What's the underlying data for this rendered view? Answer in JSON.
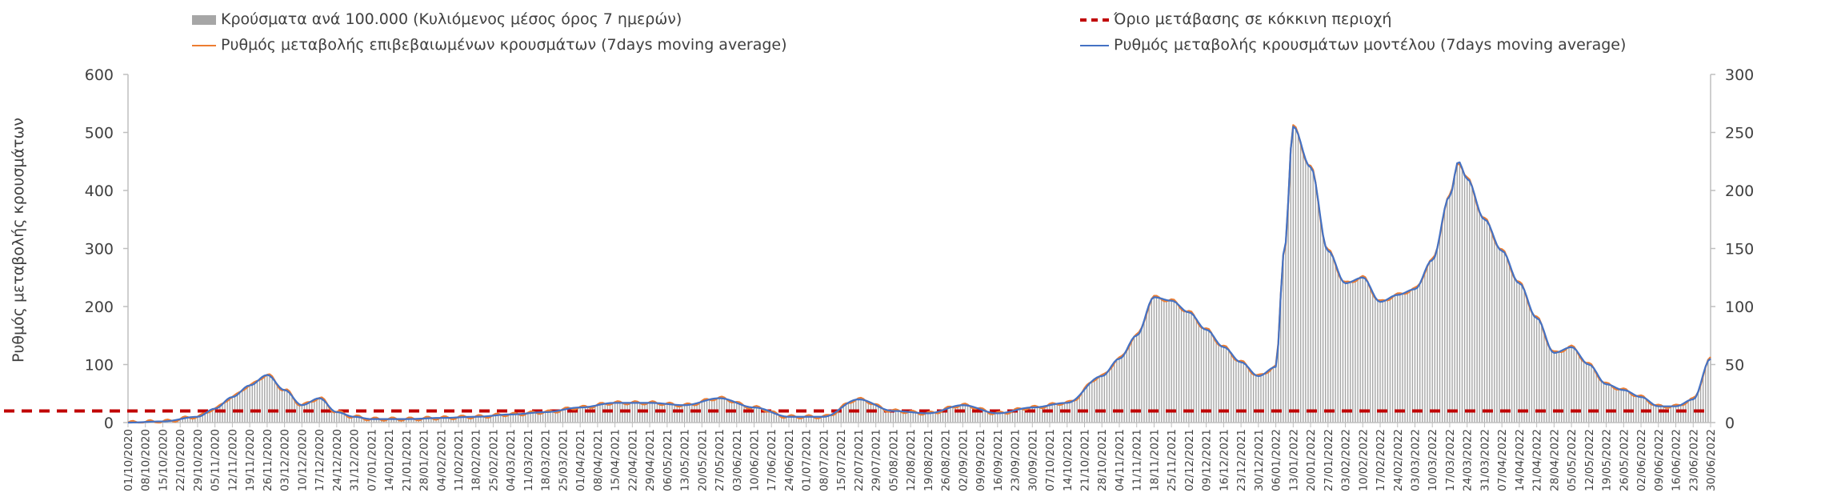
{
  "chart_data": {
    "type": "bar",
    "ylabel_left": "Ρυθμός μεταβολής κρουσμάτων",
    "left_axis": {
      "ylim": [
        0,
        600
      ],
      "ticks": [
        0,
        100,
        200,
        300,
        400,
        500,
        600
      ]
    },
    "right_axis": {
      "ylim": [
        0,
        300
      ],
      "ticks": [
        0,
        50,
        100,
        150,
        200,
        250,
        300
      ]
    },
    "grid": false,
    "legend_position": "top",
    "x_tick_labels": [
      "01/10/2020",
      "08/10/2020",
      "15/10/2020",
      "22/10/2020",
      "29/10/2020",
      "05/11/2020",
      "12/11/2020",
      "19/11/2020",
      "26/11/2020",
      "03/12/2020",
      "10/12/2020",
      "17/12/2020",
      "24/12/2020",
      "31/12/2020",
      "07/01/2021",
      "14/01/2021",
      "21/01/2021",
      "28/01/2021",
      "04/02/2021",
      "11/02/2021",
      "18/02/2021",
      "25/02/2021",
      "04/03/2021",
      "11/03/2021",
      "18/03/2021",
      "25/03/2021",
      "01/04/2021",
      "08/04/2021",
      "15/04/2021",
      "22/04/2021",
      "29/04/2021",
      "06/05/2021",
      "13/05/2021",
      "20/05/2021",
      "27/05/2021",
      "03/06/2021",
      "10/06/2021",
      "17/06/2021",
      "24/06/2021",
      "01/07/2021",
      "08/07/2021",
      "15/07/2021",
      "22/07/2021",
      "29/07/2021",
      "05/08/2021",
      "12/08/2021",
      "19/08/2021",
      "26/08/2021",
      "02/09/2021",
      "09/09/2021",
      "16/09/2021",
      "23/09/2021",
      "30/09/2021",
      "07/10/2021",
      "14/10/2021",
      "21/10/2021",
      "28/10/2021",
      "04/11/2021",
      "11/11/2021",
      "18/11/2021",
      "25/11/2021",
      "02/12/2021",
      "09/12/2021",
      "16/12/2021",
      "23/12/2021",
      "30/12/2021",
      "06/01/2022",
      "13/01/2022",
      "20/01/2022",
      "27/01/2022",
      "03/02/2022",
      "10/02/2022",
      "17/02/2022",
      "24/02/2022",
      "03/03/2022",
      "10/03/2022",
      "17/03/2022",
      "24/03/2022",
      "31/03/2022",
      "07/04/2022",
      "14/04/2022",
      "21/04/2022",
      "28/04/2022",
      "05/05/2022",
      "12/05/2022",
      "19/05/2022",
      "26/05/2022",
      "02/06/2022",
      "09/06/2022",
      "16/06/2022",
      "23/06/2022",
      "30/06/2022"
    ],
    "keypoints_week_index": [
      0,
      2,
      4,
      5,
      6,
      7,
      8,
      9,
      10,
      11,
      12,
      13,
      14,
      16,
      18,
      20,
      22,
      24,
      26,
      28,
      30,
      32,
      34,
      36,
      38,
      40,
      42,
      44,
      46,
      48,
      50,
      52,
      54,
      56,
      57,
      58,
      59,
      60,
      61,
      62,
      63,
      64,
      65,
      66,
      66.5,
      67,
      68,
      69,
      70,
      71,
      72,
      73,
      74,
      75,
      76,
      76.5,
      77,
      78,
      79,
      80,
      81,
      82,
      83,
      84,
      85,
      86,
      87,
      88,
      89,
      90,
      91
    ],
    "series": [
      {
        "name": "Κρούσματα ανά 100.000 (Κυλιόμενος μέσος όρος 7 ημερών)",
        "axis": "right",
        "style": "bar",
        "values": [
          0,
          1,
          5,
          12,
          22,
          32,
          40,
          28,
          15,
          21,
          9,
          5,
          3,
          3,
          4,
          5,
          7,
          9,
          13,
          17,
          17,
          15,
          21,
          13,
          5,
          5,
          20,
          10,
          8,
          15,
          8,
          13,
          17,
          40,
          55,
          75,
          108,
          105,
          95,
          80,
          65,
          52,
          40,
          48,
          150,
          255,
          220,
          148,
          120,
          125,
          104,
          110,
          115,
          140,
          195,
          225,
          210,
          175,
          148,
          120,
          90,
          60,
          65,
          50,
          33,
          28,
          22,
          14,
          14,
          20,
          55,
          57
        ]
      },
      {
        "name": "Ρυθμός μεταβολής επιβεβαιωμένων κρουσμάτων (7days moving average)",
        "axis": "left",
        "style": "line",
        "color": "#ED7D31",
        "values": [
          0,
          2,
          10,
          24,
          44,
          64,
          82,
          56,
          30,
          42,
          18,
          10,
          6,
          6,
          8,
          10,
          14,
          18,
          26,
          34,
          34,
          30,
          42,
          26,
          10,
          10,
          40,
          20,
          16,
          30,
          16,
          26,
          34,
          80,
          110,
          150,
          216,
          210,
          190,
          160,
          130,
          104,
          80,
          96,
          300,
          510,
          440,
          296,
          240,
          250,
          208,
          220,
          230,
          280,
          390,
          450,
          420,
          350,
          296,
          240,
          180,
          120,
          130,
          100,
          66,
          56,
          44,
          28,
          28,
          40,
          110,
          114
        ]
      },
      {
        "name": "Ρυθμός μεταβολής κρουσμάτων μοντέλου (7days moving average)",
        "axis": "left",
        "style": "line",
        "color": "#4472C4",
        "values": [
          0,
          2,
          10,
          24,
          44,
          64,
          82,
          56,
          30,
          42,
          18,
          10,
          6,
          6,
          8,
          10,
          14,
          18,
          26,
          34,
          34,
          30,
          42,
          26,
          10,
          10,
          40,
          20,
          16,
          30,
          16,
          26,
          34,
          80,
          110,
          150,
          216,
          210,
          190,
          160,
          130,
          104,
          80,
          96,
          300,
          510,
          440,
          296,
          240,
          250,
          208,
          220,
          230,
          280,
          390,
          450,
          420,
          350,
          296,
          240,
          180,
          120,
          130,
          100,
          66,
          56,
          44,
          28,
          28,
          40,
          110,
          114
        ]
      },
      {
        "name": "Όριο μετάβασης σε κόκκινη περιοχή",
        "axis": "left",
        "style": "dashed-line",
        "color": "#C00000",
        "constant_value": 20
      }
    ]
  },
  "colors": {
    "bars": "#A6A6A6",
    "orange": "#ED7D31",
    "blue": "#4472C4",
    "threshold": "#C00000",
    "axis": "#BFBFBF",
    "text": "#404040"
  }
}
